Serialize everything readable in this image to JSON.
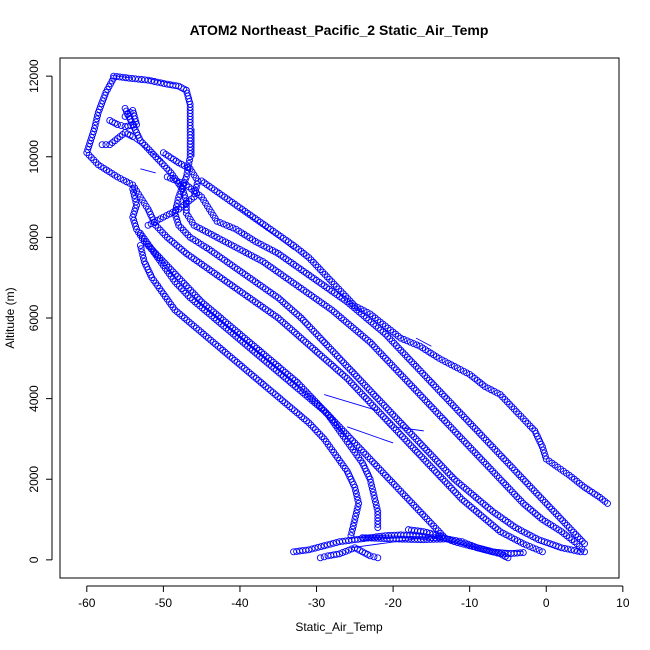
{
  "chart_data": {
    "type": "scatter",
    "title": "ATOM2 Northeast_Pacific_2 Static_Air_Temp",
    "xlabel": "Static_Air_Temp",
    "ylabel": "Altitude (m)",
    "xlim": [
      -63.5,
      9.5
    ],
    "ylim": [
      -450,
      12450
    ],
    "x_ticks": [
      -60,
      -50,
      -40,
      -30,
      -20,
      -10,
      0,
      10
    ],
    "x_tick_labels": [
      "-60",
      "-50",
      "-40",
      "-30",
      "-20",
      "-10",
      "0",
      "10"
    ],
    "y_ticks": [
      0,
      2000,
      4000,
      6000,
      8000,
      10000,
      12000
    ],
    "y_tick_labels": [
      "0",
      "2000",
      "4000",
      "6000",
      "8000",
      "10000",
      "12000"
    ],
    "grid": false,
    "legend": "none",
    "marker": "open-circle",
    "color": "#0000ff",
    "series": [
      {
        "points": [
          [
            -56.5,
            12000
          ],
          [
            -54.5,
            11950
          ],
          [
            -52,
            11900
          ],
          [
            -49.5,
            11800
          ],
          [
            -48,
            11750
          ],
          [
            -47,
            11650
          ],
          [
            -46.5,
            11300
          ],
          [
            -46.5,
            10700
          ],
          [
            -46.5,
            10000
          ],
          [
            -47,
            9500
          ],
          [
            -48,
            9000
          ],
          [
            -48.5,
            8600
          ],
          [
            -48,
            8300
          ],
          [
            -46.5,
            8000
          ],
          [
            -44,
            7700
          ],
          [
            -41,
            7300
          ],
          [
            -38,
            6900
          ],
          [
            -35,
            6500
          ],
          [
            -32,
            6000
          ],
          [
            -29.5,
            5500
          ],
          [
            -27,
            5000
          ],
          [
            -24.5,
            4500
          ],
          [
            -22,
            4000
          ],
          [
            -19.5,
            3500
          ],
          [
            -17,
            3000
          ],
          [
            -14.5,
            2500
          ],
          [
            -12,
            2000
          ],
          [
            -9.5,
            1600
          ],
          [
            -7,
            1200
          ],
          [
            -4,
            800
          ],
          [
            -1,
            500
          ],
          [
            2,
            300
          ],
          [
            4.5,
            200
          ]
        ]
      },
      {
        "points": [
          [
            -56.5,
            11950
          ],
          [
            -57.5,
            11600
          ],
          [
            -58.5,
            11100
          ],
          [
            -59,
            10700
          ],
          [
            -59.5,
            10400
          ],
          [
            -60,
            10100
          ],
          [
            -58.5,
            9800
          ],
          [
            -56,
            9500
          ],
          [
            -54,
            9300
          ],
          [
            -53,
            9000
          ],
          [
            -52,
            8700
          ],
          [
            -51,
            8300
          ],
          [
            -49.5,
            8000
          ],
          [
            -47,
            7600
          ],
          [
            -44,
            7200
          ],
          [
            -41,
            6800
          ],
          [
            -38,
            6400
          ],
          [
            -35,
            6000
          ],
          [
            -32,
            5500
          ],
          [
            -29,
            5000
          ],
          [
            -26,
            4500
          ],
          [
            -23.5,
            4000
          ],
          [
            -21,
            3500
          ],
          [
            -18.5,
            3000
          ],
          [
            -16,
            2500
          ],
          [
            -13.5,
            2000
          ],
          [
            -11,
            1500
          ],
          [
            -8.5,
            1100
          ],
          [
            -6,
            700
          ],
          [
            -3,
            400
          ],
          [
            -0.5,
            200
          ]
        ]
      },
      {
        "points": [
          [
            -55,
            11200
          ],
          [
            -54,
            10800
          ],
          [
            -53,
            10400
          ],
          [
            -51,
            10000
          ],
          [
            -49,
            9600
          ],
          [
            -47.5,
            9200
          ],
          [
            -47,
            8900
          ],
          [
            -47,
            8600
          ],
          [
            -46,
            8300
          ],
          [
            -43,
            8000
          ],
          [
            -40,
            7700
          ],
          [
            -37,
            7400
          ],
          [
            -34,
            7000
          ],
          [
            -31,
            6600
          ],
          [
            -28,
            6200
          ],
          [
            -25.5,
            5800
          ],
          [
            -23,
            5400
          ],
          [
            -21,
            5000
          ],
          [
            -19,
            4600
          ],
          [
            -17,
            4200
          ],
          [
            -15,
            3800
          ],
          [
            -13,
            3400
          ],
          [
            -11,
            3000
          ],
          [
            -9,
            2600
          ],
          [
            -7,
            2200
          ],
          [
            -5,
            1800
          ],
          [
            -3,
            1400
          ],
          [
            -0.5,
            1000
          ],
          [
            2,
            700
          ],
          [
            4,
            400
          ],
          [
            5,
            200
          ]
        ]
      },
      {
        "points": [
          [
            -54,
            9200
          ],
          [
            -53.5,
            8800
          ],
          [
            -54,
            8500
          ],
          [
            -53.5,
            8200
          ],
          [
            -52.5,
            7900
          ],
          [
            -51,
            7600
          ],
          [
            -49,
            7200
          ],
          [
            -47,
            6800
          ],
          [
            -45,
            6400
          ],
          [
            -42.5,
            6000
          ],
          [
            -40,
            5600
          ],
          [
            -37.5,
            5200
          ],
          [
            -35,
            4800
          ],
          [
            -32.5,
            4400
          ],
          [
            -30.5,
            4000
          ],
          [
            -28.5,
            3600
          ],
          [
            -27,
            3200
          ],
          [
            -25.5,
            2800
          ],
          [
            -24,
            2400
          ],
          [
            -23,
            2000
          ],
          [
            -22.5,
            1600
          ],
          [
            -22,
            1200
          ],
          [
            -22,
            800
          ]
        ]
      },
      {
        "points": [
          [
            -53,
            7800
          ],
          [
            -52.5,
            7400
          ],
          [
            -51.5,
            7000
          ],
          [
            -50,
            6600
          ],
          [
            -48.5,
            6200
          ],
          [
            -46,
            5800
          ],
          [
            -43.5,
            5400
          ],
          [
            -41,
            5000
          ],
          [
            -38.5,
            4600
          ],
          [
            -36,
            4200
          ],
          [
            -33.5,
            3800
          ],
          [
            -31,
            3400
          ],
          [
            -29,
            3000
          ],
          [
            -27.5,
            2600
          ],
          [
            -26,
            2200
          ],
          [
            -25,
            1800
          ],
          [
            -24.5,
            1400
          ],
          [
            -25,
            1000
          ],
          [
            -25.5,
            600
          ]
        ]
      },
      {
        "points": [
          [
            -53,
            8100
          ],
          [
            -51.5,
            7700
          ],
          [
            -50,
            7300
          ],
          [
            -48.5,
            6900
          ],
          [
            -46.5,
            6500
          ],
          [
            -44,
            6100
          ],
          [
            -41.5,
            5700
          ],
          [
            -39,
            5300
          ],
          [
            -36.5,
            4900
          ],
          [
            -34,
            4500
          ],
          [
            -31.5,
            4100
          ],
          [
            -29,
            3700
          ],
          [
            -27,
            3300
          ],
          [
            -25,
            2900
          ],
          [
            -23,
            2500
          ],
          [
            -21,
            2100
          ],
          [
            -19,
            1700
          ],
          [
            -17,
            1300
          ],
          [
            -15,
            900
          ],
          [
            -13.5,
            600
          ]
        ]
      },
      {
        "points": [
          [
            -45,
            9400
          ],
          [
            -42,
            9000
          ],
          [
            -39,
            8600
          ],
          [
            -36,
            8200
          ],
          [
            -33,
            7800
          ],
          [
            -31,
            7500
          ],
          [
            -29.5,
            7200
          ],
          [
            -28,
            6900
          ],
          [
            -26.5,
            6600
          ],
          [
            -25,
            6300
          ],
          [
            -23,
            6100
          ],
          [
            -21,
            5800
          ],
          [
            -19,
            5500
          ],
          [
            -16.5,
            5300
          ],
          [
            -14,
            5000
          ],
          [
            -12,
            4800
          ],
          [
            -10,
            4600
          ],
          [
            -8,
            4300
          ],
          [
            -6,
            4100
          ],
          [
            -4.5,
            3800
          ],
          [
            -3,
            3500
          ],
          [
            -1.5,
            3200
          ],
          [
            -0.5,
            2800
          ],
          [
            0,
            2500
          ],
          [
            1.5,
            2300
          ],
          [
            3,
            2100
          ],
          [
            5,
            1800
          ],
          [
            7,
            1550
          ],
          [
            8,
            1400
          ]
        ]
      },
      {
        "points": [
          [
            -33,
            200
          ],
          [
            -31,
            250
          ],
          [
            -29,
            350
          ],
          [
            -27,
            450
          ],
          [
            -25,
            500
          ],
          [
            -23,
            550
          ],
          [
            -21,
            600
          ],
          [
            -19,
            620
          ],
          [
            -17,
            600
          ],
          [
            -15,
            550
          ],
          [
            -14,
            550
          ]
        ]
      },
      {
        "points": [
          [
            -29.5,
            50
          ],
          [
            -28.5,
            100
          ],
          [
            -27,
            150
          ],
          [
            -25,
            300
          ],
          [
            -24,
            200
          ],
          [
            -23,
            100
          ],
          [
            -22,
            50
          ]
        ]
      },
      {
        "points": [
          [
            -18,
            750
          ],
          [
            -16,
            700
          ],
          [
            -14,
            600
          ],
          [
            -12,
            450
          ],
          [
            -10,
            350
          ],
          [
            -8,
            250
          ],
          [
            -6,
            150
          ],
          [
            -5,
            50
          ]
        ]
      },
      {
        "points": [
          [
            -24,
            550
          ],
          [
            -20,
            520
          ],
          [
            -16,
            500
          ],
          [
            -13,
            520
          ],
          [
            -11,
            450
          ],
          [
            -9,
            300
          ],
          [
            -7,
            200
          ],
          [
            -5,
            150
          ],
          [
            -3,
            180
          ]
        ]
      },
      {
        "points": [
          [
            -57,
            10900
          ],
          [
            -56,
            10800
          ],
          [
            -55,
            10750
          ],
          [
            -53.5,
            10800
          ],
          [
            -54,
            11150
          ],
          [
            -55,
            11000
          ]
        ]
      },
      {
        "points": [
          [
            -50,
            10100
          ],
          [
            -48,
            9850
          ],
          [
            -46.5,
            9700
          ],
          [
            -45.5,
            9400
          ],
          [
            -46,
            9000
          ],
          [
            -48,
            8700
          ],
          [
            -50,
            8500
          ],
          [
            -52,
            8300
          ]
        ]
      },
      {
        "points": [
          [
            -49.5,
            9500
          ],
          [
            -47,
            9300
          ],
          [
            -45,
            9000
          ],
          [
            -44,
            8700
          ],
          [
            -43,
            8400
          ],
          [
            -40.5,
            8200
          ],
          [
            -38,
            7900
          ],
          [
            -35,
            7600
          ],
          [
            -32,
            7200
          ],
          [
            -29,
            6800
          ],
          [
            -26,
            6400
          ],
          [
            -23.5,
            6000
          ],
          [
            -21,
            5600
          ],
          [
            -19,
            5200
          ],
          [
            -17,
            4800
          ],
          [
            -15,
            4400
          ],
          [
            -13,
            4000
          ],
          [
            -11,
            3600
          ],
          [
            -9,
            3200
          ],
          [
            -7,
            2800
          ],
          [
            -5,
            2400
          ],
          [
            -3,
            2000
          ],
          [
            -1,
            1600
          ],
          [
            1,
            1200
          ],
          [
            3,
            800
          ],
          [
            5,
            400
          ]
        ]
      },
      {
        "points": [
          [
            -58,
            10300
          ],
          [
            -57,
            10300
          ],
          [
            -55,
            10600
          ],
          [
            -54,
            10500
          ]
        ]
      }
    ],
    "segments": [
      [
        [
          -56,
          12000
        ],
        [
          -54,
          11950
        ]
      ],
      [
        [
          -52,
          11950
        ],
        [
          -48.5,
          11800
        ]
      ],
      [
        [
          -54.5,
          10500
        ],
        [
          -50,
          9900
        ]
      ],
      [
        [
          -46,
          10700
        ],
        [
          -46,
          10000
        ]
      ],
      [
        [
          -53,
          9700
        ],
        [
          -51,
          9600
        ]
      ],
      [
        [
          -40,
          8700
        ],
        [
          -33,
          7700
        ]
      ],
      [
        [
          -17,
          5500
        ],
        [
          -15,
          5300
        ]
      ],
      [
        [
          -25.5,
          550
        ],
        [
          -16,
          550
        ]
      ],
      [
        [
          -25.5,
          300
        ],
        [
          -14,
          600
        ]
      ],
      [
        [
          -15,
          550
        ],
        [
          -9,
          300
        ]
      ],
      [
        [
          -9,
          300
        ],
        [
          -3,
          200
        ]
      ],
      [
        [
          -20,
          3300
        ],
        [
          -16,
          3200
        ]
      ],
      [
        [
          -29,
          4100
        ],
        [
          -22,
          3700
        ]
      ],
      [
        [
          -26,
          3300
        ],
        [
          -20,
          2900
        ]
      ]
    ]
  }
}
